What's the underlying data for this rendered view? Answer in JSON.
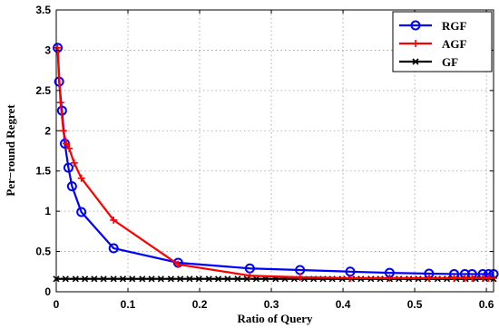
{
  "chart_data": {
    "type": "line",
    "xlabel": "Ratio of Query",
    "ylabel": "Per−round Regret",
    "xlim": [
      0,
      0.61
    ],
    "ylim": [
      0,
      3.5
    ],
    "xticks": [
      0,
      0.1,
      0.2,
      0.3,
      0.4,
      0.5,
      0.6
    ],
    "xtick_labels": [
      "0",
      "0.1",
      "0.2",
      "0.3",
      "0.4",
      "0.5",
      "0.6"
    ],
    "yticks": [
      0,
      0.5,
      1,
      1.5,
      2,
      2.5,
      3,
      3.5
    ],
    "ytick_labels": [
      "0",
      "0.5",
      "1",
      "1.5",
      "2",
      "2.5",
      "3",
      "3.5"
    ],
    "grid": true,
    "legend_position": "top-right",
    "series": [
      {
        "name": "RGF",
        "color": "#0000ff",
        "marker": "circle",
        "x": [
          0.002,
          0.004,
          0.008,
          0.012,
          0.017,
          0.022,
          0.035,
          0.08,
          0.17,
          0.27,
          0.34,
          0.41,
          0.465,
          0.52,
          0.555,
          0.57,
          0.58,
          0.595,
          0.603,
          0.61
        ],
        "y": [
          3.03,
          2.61,
          2.25,
          1.84,
          1.54,
          1.31,
          0.99,
          0.54,
          0.36,
          0.29,
          0.27,
          0.25,
          0.235,
          0.225,
          0.22,
          0.22,
          0.22,
          0.22,
          0.22,
          0.22
        ]
      },
      {
        "name": "AGF",
        "color": "#ff0000",
        "marker": "plus",
        "x": [
          0.002,
          0.006,
          0.01,
          0.014,
          0.018,
          0.025,
          0.035,
          0.08,
          0.17,
          0.27,
          0.34,
          0.41,
          0.465,
          0.52,
          0.555,
          0.57,
          0.58,
          0.595,
          0.603,
          0.61
        ],
        "y": [
          3.03,
          2.35,
          2.0,
          1.84,
          1.78,
          1.6,
          1.41,
          0.89,
          0.34,
          0.2,
          0.18,
          0.17,
          0.17,
          0.17,
          0.17,
          0.17,
          0.17,
          0.17,
          0.17,
          0.17
        ]
      },
      {
        "name": "GF",
        "color": "#000000",
        "marker": "x",
        "x": [
          0.0,
          0.013,
          0.027,
          0.04,
          0.053,
          0.066,
          0.08,
          0.093,
          0.106,
          0.12,
          0.133,
          0.146,
          0.16,
          0.173,
          0.186,
          0.199,
          0.213,
          0.226,
          0.239,
          0.253,
          0.266,
          0.279,
          0.292,
          0.306,
          0.319,
          0.332,
          0.346,
          0.359,
          0.372,
          0.385,
          0.399,
          0.412,
          0.425,
          0.439,
          0.452,
          0.465,
          0.478,
          0.492,
          0.505,
          0.518,
          0.532,
          0.545,
          0.558,
          0.571,
          0.585,
          0.598,
          0.61
        ],
        "y": [
          0.16,
          0.16,
          0.16,
          0.16,
          0.16,
          0.16,
          0.16,
          0.16,
          0.16,
          0.16,
          0.16,
          0.16,
          0.16,
          0.16,
          0.16,
          0.16,
          0.16,
          0.16,
          0.16,
          0.16,
          0.16,
          0.16,
          0.16,
          0.16,
          0.16,
          0.16,
          0.16,
          0.16,
          0.16,
          0.16,
          0.16,
          0.16,
          0.16,
          0.16,
          0.16,
          0.16,
          0.16,
          0.16,
          0.16,
          0.16,
          0.16,
          0.16,
          0.16,
          0.16,
          0.16,
          0.16,
          0.16
        ]
      }
    ]
  }
}
